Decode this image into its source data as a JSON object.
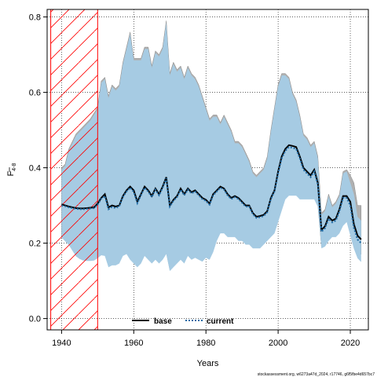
{
  "chart_data": {
    "type": "line",
    "xlabel": "Years",
    "ylabel_main": "F",
    "ylabel_sub": "4-8",
    "xlim": [
      1936,
      2025
    ],
    "ylim": [
      -0.03,
      0.82
    ],
    "x_ticks": [
      1940,
      1960,
      1980,
      2000,
      2020
    ],
    "y_ticks": [
      0.0,
      0.2,
      0.4,
      0.6,
      0.8
    ],
    "x_tick_labels": [
      "1940",
      "1960",
      "1980",
      "2000",
      "2020"
    ],
    "y_tick_labels": [
      "0.0",
      "0.2",
      "0.4",
      "0.6",
      "0.8"
    ],
    "grid": true,
    "hatched_region": {
      "from": 1937,
      "to": 1950,
      "color": "#ff0000"
    },
    "x": [
      1940,
      1941,
      1942,
      1943,
      1944,
      1945,
      1946,
      1947,
      1948,
      1949,
      1950,
      1951,
      1952,
      1953,
      1954,
      1955,
      1956,
      1957,
      1958,
      1959,
      1960,
      1961,
      1962,
      1963,
      1964,
      1965,
      1966,
      1967,
      1968,
      1969,
      1970,
      1971,
      1972,
      1973,
      1974,
      1975,
      1976,
      1977,
      1978,
      1979,
      1980,
      1981,
      1982,
      1983,
      1984,
      1985,
      1986,
      1987,
      1988,
      1989,
      1990,
      1991,
      1992,
      1993,
      1994,
      1995,
      1996,
      1997,
      1998,
      1999,
      2000,
      2001,
      2002,
      2003,
      2004,
      2005,
      2006,
      2007,
      2008,
      2009,
      2010,
      2011,
      2012,
      2013,
      2014,
      2015,
      2016,
      2017,
      2018,
      2019,
      2020,
      2021,
      2022,
      2023
    ],
    "series": [
      {
        "name": "base",
        "color": "#000000",
        "style": "solid",
        "values": [
          0.303,
          0.3,
          0.297,
          0.295,
          0.293,
          0.292,
          0.292,
          0.293,
          0.294,
          0.295,
          0.305,
          0.32,
          0.33,
          0.295,
          0.3,
          0.297,
          0.3,
          0.325,
          0.34,
          0.35,
          0.34,
          0.31,
          0.33,
          0.35,
          0.34,
          0.325,
          0.345,
          0.33,
          0.35,
          0.375,
          0.3,
          0.315,
          0.325,
          0.345,
          0.33,
          0.345,
          0.335,
          0.34,
          0.33,
          0.32,
          0.315,
          0.305,
          0.33,
          0.34,
          0.35,
          0.345,
          0.33,
          0.32,
          0.325,
          0.32,
          0.31,
          0.3,
          0.3,
          0.28,
          0.27,
          0.272,
          0.275,
          0.285,
          0.32,
          0.34,
          0.39,
          0.43,
          0.45,
          0.46,
          0.458,
          0.455,
          0.43,
          0.4,
          0.39,
          0.38,
          0.395,
          0.36,
          0.235,
          0.245,
          0.27,
          0.26,
          0.265,
          0.29,
          0.325,
          0.325,
          0.31,
          0.25,
          0.22,
          0.21
        ]
      },
      {
        "name": "current",
        "color": "#1f6aa5",
        "style": "dotted",
        "values": [
          0.3,
          0.298,
          0.295,
          0.293,
          0.291,
          0.29,
          0.29,
          0.291,
          0.292,
          0.293,
          0.302,
          0.318,
          0.325,
          0.29,
          0.296,
          0.293,
          0.298,
          0.322,
          0.337,
          0.347,
          0.336,
          0.306,
          0.327,
          0.347,
          0.337,
          0.322,
          0.342,
          0.327,
          0.347,
          0.372,
          0.297,
          0.312,
          0.322,
          0.342,
          0.327,
          0.342,
          0.332,
          0.337,
          0.327,
          0.317,
          0.312,
          0.302,
          0.327,
          0.337,
          0.347,
          0.342,
          0.327,
          0.317,
          0.322,
          0.317,
          0.307,
          0.297,
          0.297,
          0.277,
          0.267,
          0.269,
          0.272,
          0.282,
          0.317,
          0.337,
          0.385,
          0.425,
          0.445,
          0.455,
          0.453,
          0.45,
          0.425,
          0.395,
          0.385,
          0.375,
          0.39,
          0.355,
          0.23,
          0.24,
          0.265,
          0.255,
          0.26,
          0.285,
          0.32,
          0.32,
          0.3,
          0.24,
          0.21,
          0.2
        ]
      }
    ],
    "confidence_bands": [
      {
        "name": "base",
        "color": "#b0b0b0",
        "upper": [
          0.4,
          0.41,
          0.45,
          0.47,
          0.49,
          0.5,
          0.51,
          0.52,
          0.53,
          0.545,
          0.56,
          0.63,
          0.64,
          0.59,
          0.62,
          0.61,
          0.62,
          0.68,
          0.72,
          0.76,
          0.69,
          0.69,
          0.69,
          0.72,
          0.72,
          0.67,
          0.71,
          0.7,
          0.72,
          0.79,
          0.65,
          0.68,
          0.66,
          0.67,
          0.64,
          0.67,
          0.65,
          0.64,
          0.62,
          0.59,
          0.56,
          0.53,
          0.54,
          0.54,
          0.52,
          0.54,
          0.52,
          0.5,
          0.47,
          0.47,
          0.46,
          0.44,
          0.42,
          0.39,
          0.38,
          0.39,
          0.4,
          0.43,
          0.5,
          0.56,
          0.62,
          0.65,
          0.65,
          0.64,
          0.6,
          0.58,
          0.54,
          0.49,
          0.48,
          0.46,
          0.47,
          0.43,
          0.28,
          0.29,
          0.33,
          0.3,
          0.31,
          0.33,
          0.39,
          0.395,
          0.38,
          0.36,
          0.3,
          0.3
        ],
        "lower": [
          0.22,
          0.21,
          0.2,
          0.185,
          0.17,
          0.162,
          0.158,
          0.157,
          0.157,
          0.158,
          0.165,
          0.172,
          0.17,
          0.14,
          0.145,
          0.145,
          0.15,
          0.17,
          0.175,
          0.16,
          0.15,
          0.14,
          0.15,
          0.17,
          0.16,
          0.15,
          0.16,
          0.15,
          0.16,
          0.175,
          0.13,
          0.14,
          0.15,
          0.16,
          0.15,
          0.17,
          0.16,
          0.165,
          0.16,
          0.155,
          0.165,
          0.16,
          0.18,
          0.21,
          0.23,
          0.23,
          0.22,
          0.22,
          0.22,
          0.21,
          0.21,
          0.2,
          0.2,
          0.19,
          0.19,
          0.19,
          0.2,
          0.21,
          0.22,
          0.23,
          0.26,
          0.29,
          0.32,
          0.33,
          0.33,
          0.33,
          0.32,
          0.32,
          0.32,
          0.32,
          0.32,
          0.3,
          0.19,
          0.195,
          0.21,
          0.22,
          0.22,
          0.23,
          0.25,
          0.26,
          0.23,
          0.2,
          0.18,
          0.17
        ]
      },
      {
        "name": "current",
        "color": "#a6cbe3",
        "upper": [
          0.395,
          0.405,
          0.445,
          0.465,
          0.485,
          0.495,
          0.505,
          0.515,
          0.525,
          0.54,
          0.555,
          0.625,
          0.635,
          0.585,
          0.615,
          0.605,
          0.615,
          0.675,
          0.715,
          0.755,
          0.685,
          0.685,
          0.685,
          0.715,
          0.715,
          0.665,
          0.705,
          0.695,
          0.715,
          0.785,
          0.645,
          0.675,
          0.655,
          0.665,
          0.635,
          0.665,
          0.645,
          0.635,
          0.615,
          0.585,
          0.555,
          0.525,
          0.535,
          0.535,
          0.515,
          0.535,
          0.515,
          0.495,
          0.465,
          0.465,
          0.455,
          0.435,
          0.415,
          0.385,
          0.375,
          0.385,
          0.395,
          0.425,
          0.495,
          0.555,
          0.615,
          0.645,
          0.645,
          0.635,
          0.595,
          0.575,
          0.535,
          0.485,
          0.475,
          0.455,
          0.465,
          0.425,
          0.275,
          0.285,
          0.325,
          0.295,
          0.305,
          0.325,
          0.385,
          0.39,
          0.36,
          0.33,
          0.27,
          0.26
        ],
        "lower": [
          0.215,
          0.205,
          0.195,
          0.18,
          0.165,
          0.158,
          0.154,
          0.153,
          0.153,
          0.154,
          0.16,
          0.168,
          0.166,
          0.136,
          0.141,
          0.141,
          0.146,
          0.166,
          0.171,
          0.156,
          0.146,
          0.136,
          0.146,
          0.166,
          0.156,
          0.146,
          0.156,
          0.146,
          0.156,
          0.171,
          0.126,
          0.136,
          0.146,
          0.156,
          0.146,
          0.166,
          0.156,
          0.161,
          0.156,
          0.151,
          0.161,
          0.156,
          0.176,
          0.206,
          0.226,
          0.226,
          0.216,
          0.216,
          0.216,
          0.206,
          0.206,
          0.196,
          0.196,
          0.186,
          0.186,
          0.186,
          0.196,
          0.206,
          0.216,
          0.226,
          0.256,
          0.286,
          0.316,
          0.326,
          0.326,
          0.326,
          0.316,
          0.316,
          0.316,
          0.316,
          0.316,
          0.296,
          0.186,
          0.191,
          0.206,
          0.216,
          0.216,
          0.226,
          0.246,
          0.256,
          0.22,
          0.185,
          0.16,
          0.15
        ]
      }
    ],
    "legend": {
      "placement": "bottom-center",
      "entries": [
        {
          "label": "base",
          "style": "solid",
          "color": "#000000"
        },
        {
          "label": "current",
          "style": "dotted",
          "color": "#1f6aa5"
        }
      ]
    },
    "footnote": "stockassessment.org, w6273a47d_2024, r17746, g6f5fbe4d657bc7"
  }
}
